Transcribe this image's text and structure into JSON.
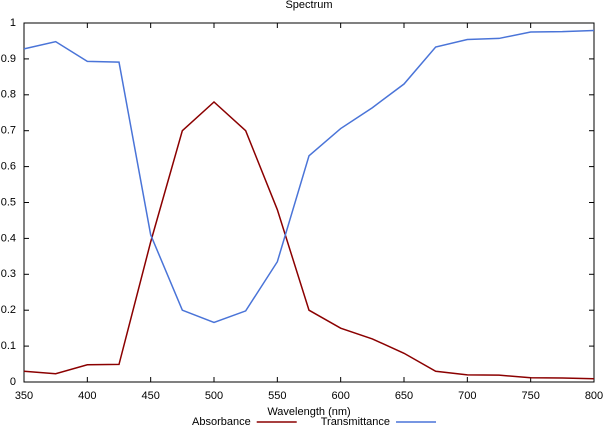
{
  "chart_data": {
    "type": "line",
    "title": "Spectrum",
    "x_label": "Wavelength (nm)",
    "x": [
      350,
      375,
      400,
      425,
      450,
      475,
      500,
      525,
      550,
      575,
      600,
      625,
      650,
      675,
      700,
      725,
      750,
      775,
      800
    ],
    "series": [
      {
        "name": "Absorbance",
        "color": "#8b0000",
        "values": [
          0.03,
          0.023,
          0.048,
          0.049,
          0.39,
          0.7,
          0.78,
          0.7,
          0.48,
          0.2,
          0.15,
          0.12,
          0.08,
          0.03,
          0.02,
          0.019,
          0.012,
          0.011,
          0.009
        ]
      },
      {
        "name": "Transmittance",
        "color": "#4a74d8",
        "values": [
          0.928,
          0.948,
          0.893,
          0.891,
          0.41,
          0.2,
          0.166,
          0.198,
          0.335,
          0.63,
          0.706,
          0.764,
          0.83,
          0.933,
          0.954,
          0.957,
          0.975,
          0.976,
          0.979
        ]
      }
    ],
    "xlim": [
      350,
      800
    ],
    "xticks": [
      350,
      400,
      450,
      500,
      550,
      600,
      650,
      700,
      750,
      800
    ],
    "ylim": [
      0,
      1
    ],
    "yticks": [
      0,
      0.1,
      0.2,
      0.3,
      0.4,
      0.5,
      0.6,
      0.7,
      0.8,
      0.9,
      1
    ],
    "grid": false,
    "legend": "bottom"
  }
}
